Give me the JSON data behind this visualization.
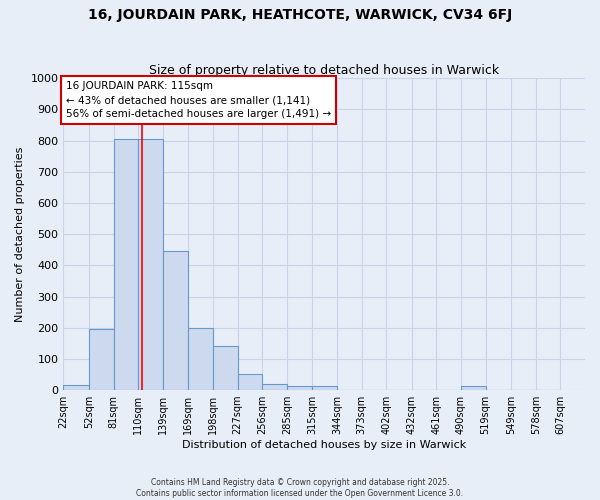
{
  "title1": "16, JOURDAIN PARK, HEATHCOTE, WARWICK, CV34 6FJ",
  "title2": "Size of property relative to detached houses in Warwick",
  "xlabel": "Distribution of detached houses by size in Warwick",
  "ylabel": "Number of detached properties",
  "bar_left_edges": [
    22,
    52,
    81,
    110,
    139,
    169,
    198,
    227,
    256,
    285,
    315,
    344,
    373,
    402,
    432,
    461,
    490,
    519,
    549,
    578
  ],
  "bar_widths": [
    30,
    29,
    29,
    29,
    30,
    29,
    29,
    29,
    29,
    30,
    29,
    29,
    29,
    30,
    29,
    29,
    29,
    30,
    29,
    29
  ],
  "bar_heights": [
    15,
    195,
    805,
    805,
    445,
    198,
    140,
    50,
    18,
    12,
    12,
    0,
    0,
    0,
    0,
    0,
    12,
    0,
    0,
    0
  ],
  "tick_labels": [
    "22sqm",
    "52sqm",
    "81sqm",
    "110sqm",
    "139sqm",
    "169sqm",
    "198sqm",
    "227sqm",
    "256sqm",
    "285sqm",
    "315sqm",
    "344sqm",
    "373sqm",
    "402sqm",
    "432sqm",
    "461sqm",
    "490sqm",
    "519sqm",
    "549sqm",
    "578sqm",
    "607sqm"
  ],
  "tick_positions": [
    22,
    52,
    81,
    110,
    139,
    169,
    198,
    227,
    256,
    285,
    315,
    344,
    373,
    402,
    432,
    461,
    490,
    519,
    549,
    578,
    607
  ],
  "bar_color": "#ccd9ee",
  "bar_edge_color": "#6699cc",
  "red_line_x": 115,
  "ylim": [
    0,
    1000
  ],
  "yticks": [
    0,
    100,
    200,
    300,
    400,
    500,
    600,
    700,
    800,
    900,
    1000
  ],
  "annotation_title": "16 JOURDAIN PARK: 115sqm",
  "annotation_line1": "← 43% of detached houses are smaller (1,141)",
  "annotation_line2": "56% of semi-detached houses are larger (1,491) →",
  "annotation_box_color": "#ffffff",
  "annotation_box_edge_color": "#cc0000",
  "grid_color": "#c8d4e8",
  "background_color": "#e8eef8",
  "plot_bg_color": "#e8eef8",
  "footer1": "Contains HM Land Registry data © Crown copyright and database right 2025.",
  "footer2": "Contains public sector information licensed under the Open Government Licence 3.0.",
  "title1_fontsize": 10,
  "title2_fontsize": 9,
  "xlabel_fontsize": 8,
  "ylabel_fontsize": 8
}
